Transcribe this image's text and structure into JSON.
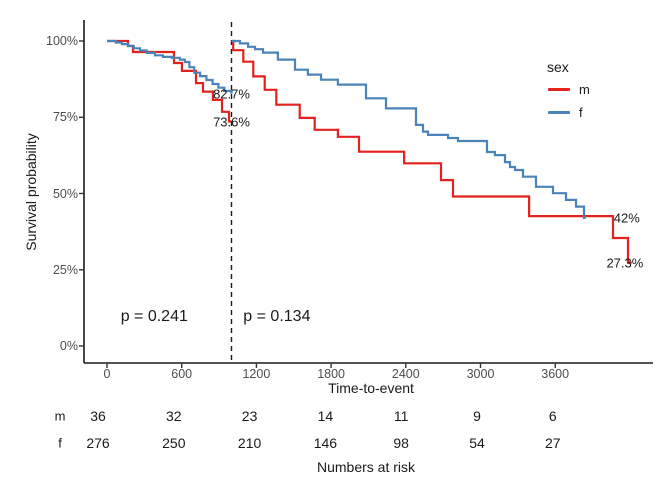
{
  "chart_data": {
    "type": "line",
    "subtype": "kaplan-meier-step-curves",
    "title": "",
    "xlabel": "Time-to-event",
    "ylabel": "Survival probability",
    "grid": false,
    "xlim": [
      0,
      4380
    ],
    "ylim": [
      0,
      100
    ],
    "x_ticks": [
      0,
      600,
      1200,
      1800,
      2400,
      3000,
      3600
    ],
    "y_ticks": {
      "values": [
        0,
        25,
        50,
        75,
        100
      ],
      "labels": [
        "0%",
        "25%",
        "50%",
        "75%",
        "100%"
      ]
    },
    "vline": {
      "t": 1000,
      "style": "dashed",
      "color": "#1a1a1a"
    },
    "legend": {
      "title": "sex",
      "position": "right",
      "items": [
        {
          "label": "m",
          "color": "#e4211c"
        },
        {
          "label": "f",
          "color": "#4a83b9"
        }
      ]
    },
    "series": [
      {
        "name": "m",
        "color": "#e4211c",
        "segments": [
          [
            [
              0,
              100
            ],
            [
              169,
              98.4
            ],
            [
              209,
              96.4
            ],
            [
              538,
              92.8
            ],
            [
              602,
              90.2
            ],
            [
              715,
              86.2
            ],
            [
              771,
              83.4
            ],
            [
              851,
              80.7
            ],
            [
              924,
              76.8
            ],
            [
              980,
              73.6
            ],
            [
              1000,
              73.6
            ]
          ],
          [
            [
              1000,
              100
            ],
            [
              1014,
              97.0
            ],
            [
              1095,
              93.2
            ],
            [
              1175,
              88.4
            ],
            [
              1267,
              84.0
            ],
            [
              1360,
              79.1
            ],
            [
              1548,
              74.8
            ],
            [
              1668,
              70.9
            ],
            [
              1855,
              68.6
            ],
            [
              2024,
              63.7
            ],
            [
              2386,
              59.9
            ],
            [
              2683,
              54.4
            ],
            [
              2779,
              49.0
            ],
            [
              3390,
              42.6
            ],
            [
              4064,
              35.4
            ],
            [
              4185,
              27.3
            ],
            [
              4215,
              27.3
            ]
          ]
        ]
      },
      {
        "name": "f",
        "color": "#4a83b9",
        "segments": [
          [
            [
              0,
              100
            ],
            [
              70,
              99.5
            ],
            [
              120,
              99.0
            ],
            [
              170,
              98.3
            ],
            [
              215,
              97.6
            ],
            [
              265,
              96.9
            ],
            [
              320,
              96.1
            ],
            [
              385,
              95.3
            ],
            [
              450,
              94.8
            ],
            [
              520,
              94.5
            ],
            [
              585,
              93.9
            ],
            [
              625,
              93.1
            ],
            [
              662,
              91.4
            ],
            [
              700,
              89.6
            ],
            [
              748,
              88.5
            ],
            [
              798,
              87.2
            ],
            [
              848,
              85.9
            ],
            [
              895,
              84.7
            ],
            [
              942,
              83.6
            ],
            [
              1000,
              82.7
            ]
          ],
          [
            [
              1000,
              100
            ],
            [
              1068,
              99.2
            ],
            [
              1133,
              98.1
            ],
            [
              1189,
              97.3
            ],
            [
              1253,
              96.2
            ],
            [
              1373,
              93.9
            ],
            [
              1510,
              90.6
            ],
            [
              1614,
              89.0
            ],
            [
              1719,
              87.3
            ],
            [
              1855,
              85.7
            ],
            [
              2080,
              81.2
            ],
            [
              2241,
              77.9
            ],
            [
              2482,
              72.5
            ],
            [
              2538,
              70.3
            ],
            [
              2578,
              69.2
            ],
            [
              2739,
              68.2
            ],
            [
              2819,
              67.2
            ],
            [
              3052,
              63.6
            ],
            [
              3116,
              62.6
            ],
            [
              3197,
              60.3
            ],
            [
              3237,
              58.7
            ],
            [
              3277,
              57.7
            ],
            [
              3341,
              55.5
            ],
            [
              3446,
              52.2
            ],
            [
              3582,
              50.1
            ],
            [
              3687,
              47.9
            ],
            [
              3767,
              45.7
            ],
            [
              3831,
              42.0
            ],
            [
              3845,
              42.0
            ]
          ]
        ]
      }
    ],
    "annotations": [
      {
        "id": "landmark-f",
        "text": "82.7%",
        "t": 1000,
        "pct": 82.7
      },
      {
        "id": "landmark-m",
        "text": "73.6%",
        "t": 1000,
        "pct": 73.6
      },
      {
        "id": "final-f",
        "text": "42%",
        "t": 4175,
        "pct": 42.0
      },
      {
        "id": "final-m",
        "text": "27.3%",
        "t": 4160,
        "pct": 27.3
      }
    ],
    "pvalues": [
      {
        "id": "p-left",
        "text": "p = 0.241",
        "t": 110,
        "pct": 9.5
      },
      {
        "id": "p-right",
        "text": "p = 0.134",
        "t": 1095,
        "pct": 9.5
      }
    ],
    "risk_table": {
      "caption": "Numbers at risk",
      "times": [
        0,
        600,
        1200,
        1800,
        2400,
        3000,
        3600
      ],
      "rows": [
        {
          "label": "m",
          "values": [
            36,
            32,
            23,
            14,
            11,
            9,
            6
          ]
        },
        {
          "label": "f",
          "values": [
            276,
            250,
            210,
            146,
            98,
            54,
            27
          ]
        }
      ]
    }
  }
}
